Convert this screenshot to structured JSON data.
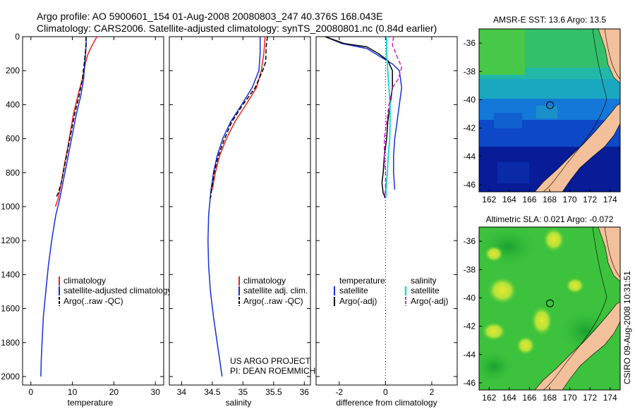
{
  "title": {
    "line1": "Argo profile: AO 5900601_154 01-Aug-2008 20080803_247 40.376S 168.043E",
    "line2": "Climatology: CARS2006. Satellite-adjusted climatology: synTS_20080801.nc (0.84d earlier)"
  },
  "colors": {
    "climatology": "#e8231e",
    "satellite": "#1530d8",
    "argo": "#000000",
    "sat_salinity": "#22d8d8",
    "argo_salinity": "#d21ed2",
    "land": "#f2c09a"
  },
  "chart_data": [
    {
      "type": "line",
      "name": "temperature-profile",
      "xlabel": "temperature",
      "ylabel": "",
      "xlim": [
        -2,
        32
      ],
      "ylim": [
        0,
        2050
      ],
      "y_reversed": true,
      "xticks": [
        0,
        10,
        20,
        30
      ],
      "yticks": [
        0,
        200,
        400,
        600,
        800,
        1000,
        1200,
        1400,
        1600,
        1800,
        2000
      ],
      "legend": {
        "position": "bottom-right",
        "entries": [
          "climatology",
          "satellite-adjusted climatology",
          "Argo(..raw -QC)"
        ]
      },
      "series": [
        {
          "name": "climatology",
          "color": "climatology",
          "dash": false,
          "width": 1.5,
          "x": [
            15.9,
            14.8,
            13.8,
            13.2,
            12.4,
            11.3,
            10.3,
            9.6,
            8.9,
            8.1,
            7.4,
            6.6,
            5.9
          ],
          "y": [
            0,
            50,
            100,
            150,
            250,
            350,
            450,
            550,
            650,
            750,
            850,
            950,
            1000
          ]
        },
        {
          "name": "satellite-adjusted climatology",
          "color": "satellite",
          "dash": false,
          "width": 1.5,
          "x": [
            13.3,
            13.3,
            13.2,
            13.0,
            12.7,
            12.0,
            11.0,
            10.2,
            9.4,
            8.6,
            7.8,
            7.0,
            6.0,
            5.0,
            4.2,
            3.6,
            3.0,
            2.7,
            2.5,
            2.4
          ],
          "y": [
            0,
            50,
            100,
            150,
            250,
            350,
            450,
            550,
            650,
            750,
            850,
            950,
            1050,
            1200,
            1350,
            1500,
            1650,
            1800,
            1900,
            2000
          ]
        },
        {
          "name": "Argo(..raw -QC)",
          "color": "argo",
          "dash": true,
          "width": 1.5,
          "x": [
            13.3,
            13.3,
            13.1,
            12.9,
            12.4,
            11.6,
            10.6,
            9.8,
            9.0,
            8.2,
            7.4,
            6.6,
            6.0
          ],
          "y": [
            0,
            50,
            100,
            150,
            250,
            350,
            450,
            550,
            650,
            750,
            850,
            920,
            950
          ]
        }
      ]
    },
    {
      "type": "line",
      "name": "salinity-profile",
      "xlabel": "salinity",
      "ylabel": "",
      "xlim": [
        33.8,
        36.1
      ],
      "ylim": [
        0,
        2050
      ],
      "y_reversed": true,
      "xticks": [
        34,
        34.5,
        35,
        35.5,
        36
      ],
      "xticklabels": [
        "34",
        "34.5",
        "35",
        "35.5",
        "36"
      ],
      "legend": {
        "position": "bottom-right",
        "entries": [
          "climatology",
          "satellite adj. clim.",
          "Argo(..raw -QC)"
        ]
      },
      "annotations": [
        "US ARGO PROJECT",
        "PI: DEAN ROEMMICH"
      ],
      "series": [
        {
          "name": "climatology",
          "color": "climatology",
          "dash": false,
          "width": 1.5,
          "x": [
            35.36,
            35.34,
            35.3,
            35.22,
            35.05,
            34.87,
            34.73,
            34.62,
            34.55,
            34.5
          ],
          "y": [
            0,
            100,
            200,
            300,
            400,
            500,
            600,
            700,
            800,
            900
          ]
        },
        {
          "name": "satellite adj. clim.",
          "color": "satellite",
          "dash": false,
          "width": 1.5,
          "x": [
            35.28,
            35.28,
            35.26,
            35.15,
            34.98,
            34.8,
            34.67,
            34.58,
            34.52,
            34.48,
            34.44,
            34.43,
            34.44,
            34.47,
            34.52,
            34.58,
            34.62,
            34.64,
            34.66
          ],
          "y": [
            0,
            100,
            200,
            300,
            400,
            500,
            600,
            700,
            800,
            900,
            1050,
            1200,
            1350,
            1500,
            1650,
            1800,
            1900,
            1950,
            2000
          ]
        },
        {
          "name": "Argo(..raw -QC)",
          "color": "argo",
          "dash": true,
          "width": 1.5,
          "x": [
            35.4,
            35.38,
            35.37,
            35.32,
            35.2,
            35.0,
            34.82,
            34.7,
            34.6,
            34.53,
            34.49,
            34.47
          ],
          "y": [
            0,
            50,
            150,
            200,
            300,
            400,
            500,
            600,
            700,
            800,
            900,
            950
          ]
        }
      ]
    },
    {
      "type": "line",
      "name": "difference-profile",
      "xlabel": "difference from climatology",
      "ylabel": "",
      "xlim": [
        -3,
        3.1
      ],
      "ylim": [
        0,
        2050
      ],
      "y_reversed": true,
      "xticks": [
        -2,
        0,
        2
      ],
      "zero_line": true,
      "legend": {
        "position": "bottom",
        "columns": [
          {
            "heading": "temperature",
            "entries": [
              "satellite",
              "Argo(-adj)"
            ]
          },
          {
            "heading": "salinity",
            "entries": [
              "satellite",
              "Argo(-adj)"
            ]
          }
        ]
      },
      "series": [
        {
          "name": "temperature satellite",
          "color": "satellite",
          "dash": false,
          "width": 1.5,
          "x": [
            -2.6,
            -1.9,
            -0.8,
            -0.2,
            0.3,
            0.6,
            0.7,
            0.6,
            0.5,
            0.4,
            0.35,
            0.35,
            0.4
          ],
          "y": [
            0,
            40,
            70,
            120,
            160,
            200,
            300,
            400,
            500,
            600,
            700,
            800,
            900
          ]
        },
        {
          "name": "temperature Argo(-adj)",
          "color": "argo",
          "dash": false,
          "width": 1.5,
          "x": [
            -2.6,
            -1.8,
            -0.8,
            -0.3,
            0.1,
            0.3,
            0.3,
            0.2,
            0.1,
            0.05,
            -0.05,
            -0.1,
            -0.15,
            -0.1,
            0.0
          ],
          "y": [
            0,
            40,
            60,
            100,
            140,
            200,
            300,
            400,
            500,
            600,
            700,
            800,
            860,
            920,
            950
          ]
        },
        {
          "name": "salinity satellite",
          "color": "sat_salinity",
          "dash": false,
          "width": 2,
          "x": [
            0.05,
            0.05,
            0.1,
            0.15,
            0.2,
            0.2,
            0.18,
            0.12,
            0.08,
            0.05,
            0.03,
            0.02
          ],
          "y": [
            0,
            100,
            200,
            300,
            400,
            500,
            600,
            700,
            800,
            850,
            900,
            950
          ]
        },
        {
          "name": "salinity Argo(-adj)",
          "color": "argo_salinity",
          "dash": true,
          "width": 1.5,
          "x": [
            0.35,
            0.3,
            0.45,
            0.7,
            0.55,
            0.3,
            0.15,
            0.05,
            -0.05,
            -0.05,
            0.0,
            0.0,
            -0.05
          ],
          "y": [
            0,
            50,
            100,
            180,
            250,
            300,
            400,
            500,
            600,
            700,
            800,
            900,
            950
          ]
        }
      ]
    },
    {
      "type": "heatmap",
      "name": "sst-map",
      "title": "AMSR-E SST: 13.6  Argo: 13.5",
      "xlim": [
        161,
        175
      ],
      "ylim": [
        -46.5,
        -35
      ],
      "xticks": [
        162,
        164,
        166,
        168,
        170,
        172,
        174
      ],
      "yticks": [
        -36,
        -38,
        -40,
        -42,
        -44,
        -46
      ],
      "marker": {
        "lon": 168.04,
        "lat": -40.38
      }
    },
    {
      "type": "heatmap",
      "name": "sla-map",
      "title": "Altimetric SLA: 0.021  Argo: -0.072",
      "xlim": [
        161,
        175
      ],
      "ylim": [
        -46.5,
        -35
      ],
      "xticks": [
        162,
        164,
        166,
        168,
        170,
        172,
        174
      ],
      "yticks": [
        -36,
        -38,
        -40,
        -42,
        -44,
        -46
      ],
      "marker": {
        "lon": 168.04,
        "lat": -40.38
      }
    }
  ],
  "side_caption": "CSIRO 09-Aug-2008 10:31:51"
}
